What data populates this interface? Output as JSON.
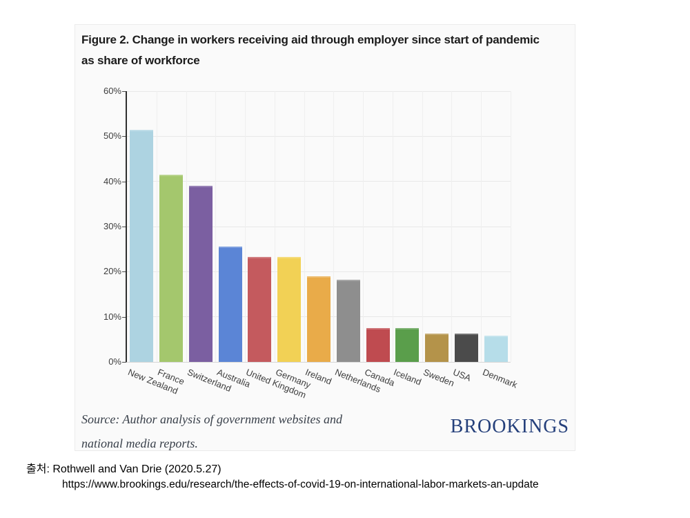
{
  "figure": {
    "title": "Figure 2. Change in workers receiving aid through employer since start of pandemic as share of workforce",
    "source_note": "Source: Author analysis of government websites and national media reports.",
    "logo_text": "BROOKINGS",
    "logo_color": "#25407b",
    "card_background": "#fafafa"
  },
  "chart_data": {
    "type": "bar",
    "title": "Figure 2. Change in workers receiving aid through employer since start of pandemic as share of workforce",
    "categories": [
      "New Zealand",
      "France",
      "Switzerland",
      "Australia",
      "United Kingdom",
      "Germany",
      "Ireland",
      "Netherlands",
      "Canada",
      "Iceland",
      "Sweden",
      "USA",
      "Denmark"
    ],
    "values": [
      51.5,
      41.5,
      39.0,
      25.5,
      23.2,
      23.2,
      19.0,
      18.2,
      7.5,
      7.5,
      6.3,
      6.2,
      5.8
    ],
    "colors": [
      "#add3e1",
      "#a4c76d",
      "#7b5fa1",
      "#5b85d6",
      "#c45a5e",
      "#f2d155",
      "#e9ab49",
      "#8e8e8e",
      "#bf4b50",
      "#5a9e4b",
      "#b4934a",
      "#4b4b4b",
      "#b6dde9"
    ],
    "xlabel": "",
    "ylabel": "",
    "ylim": [
      0,
      60
    ],
    "yticks": [
      "0%",
      "10%",
      "20%",
      "30%",
      "40%",
      "50%",
      "60%"
    ],
    "grid": true,
    "legend": false,
    "value_unit": "percent of workforce"
  },
  "citation": {
    "line1": "출처: Rothwell and Van Drie (2020.5.27)",
    "line2": "https://www.brookings.edu/research/the-effects-of-covid-19-on-international-labor-markets-an-update"
  }
}
